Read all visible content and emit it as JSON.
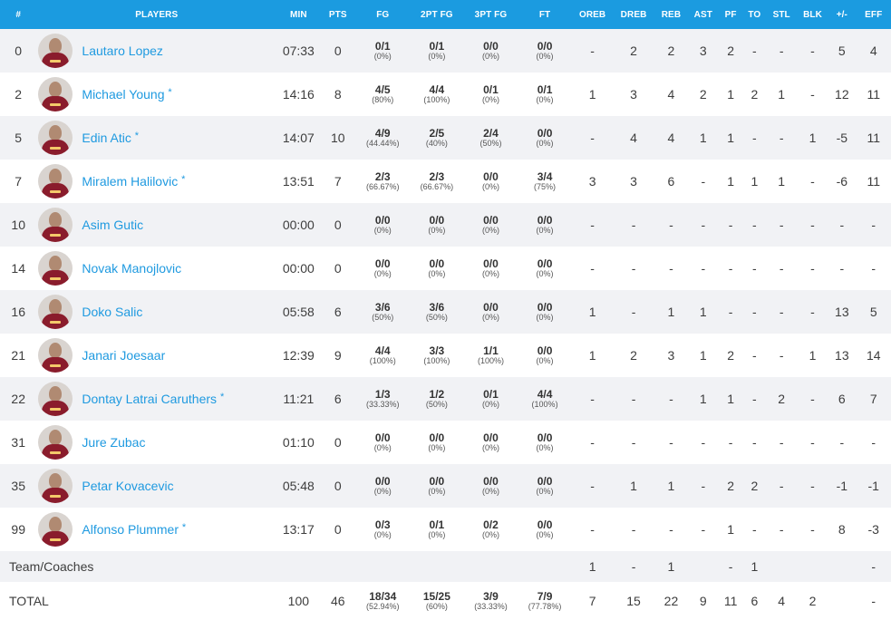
{
  "columns": [
    "#",
    "PLAYERS",
    "MIN",
    "PTS",
    "FG",
    "2PT FG",
    "3PT FG",
    "FT",
    "OREB",
    "DREB",
    "REB",
    "AST",
    "PF",
    "TO",
    "STL",
    "BLK",
    "+/-",
    "EFF"
  ],
  "players": [
    {
      "number": "0",
      "name": "Lautaro Lopez",
      "starter": "",
      "min": "07:33",
      "pts": "0",
      "fg": {
        "m": "0/1",
        "p": "(0%)"
      },
      "fg2": {
        "m": "0/1",
        "p": "(0%)"
      },
      "fg3": {
        "m": "0/0",
        "p": "(0%)"
      },
      "ft": {
        "m": "0/0",
        "p": "(0%)"
      },
      "oreb": "-",
      "dreb": "2",
      "reb": "2",
      "ast": "3",
      "pf": "2",
      "to": "-",
      "stl": "-",
      "blk": "-",
      "pm": "5",
      "eff": "4"
    },
    {
      "number": "2",
      "name": "Michael Young",
      "starter": "*",
      "min": "14:16",
      "pts": "8",
      "fg": {
        "m": "4/5",
        "p": "(80%)"
      },
      "fg2": {
        "m": "4/4",
        "p": "(100%)"
      },
      "fg3": {
        "m": "0/1",
        "p": "(0%)"
      },
      "ft": {
        "m": "0/1",
        "p": "(0%)"
      },
      "oreb": "1",
      "dreb": "3",
      "reb": "4",
      "ast": "2",
      "pf": "1",
      "to": "2",
      "stl": "1",
      "blk": "-",
      "pm": "12",
      "eff": "11"
    },
    {
      "number": "5",
      "name": "Edin Atic",
      "starter": "*",
      "min": "14:07",
      "pts": "10",
      "fg": {
        "m": "4/9",
        "p": "(44.44%)"
      },
      "fg2": {
        "m": "2/5",
        "p": "(40%)"
      },
      "fg3": {
        "m": "2/4",
        "p": "(50%)"
      },
      "ft": {
        "m": "0/0",
        "p": "(0%)"
      },
      "oreb": "-",
      "dreb": "4",
      "reb": "4",
      "ast": "1",
      "pf": "1",
      "to": "-",
      "stl": "-",
      "blk": "1",
      "pm": "-5",
      "eff": "11"
    },
    {
      "number": "7",
      "name": "Miralem Halilovic",
      "starter": "*",
      "min": "13:51",
      "pts": "7",
      "fg": {
        "m": "2/3",
        "p": "(66.67%)"
      },
      "fg2": {
        "m": "2/3",
        "p": "(66.67%)"
      },
      "fg3": {
        "m": "0/0",
        "p": "(0%)"
      },
      "ft": {
        "m": "3/4",
        "p": "(75%)"
      },
      "oreb": "3",
      "dreb": "3",
      "reb": "6",
      "ast": "-",
      "pf": "1",
      "to": "1",
      "stl": "1",
      "blk": "-",
      "pm": "-6",
      "eff": "11"
    },
    {
      "number": "10",
      "name": "Asim Gutic",
      "starter": "",
      "min": "00:00",
      "pts": "0",
      "fg": {
        "m": "0/0",
        "p": "(0%)"
      },
      "fg2": {
        "m": "0/0",
        "p": "(0%)"
      },
      "fg3": {
        "m": "0/0",
        "p": "(0%)"
      },
      "ft": {
        "m": "0/0",
        "p": "(0%)"
      },
      "oreb": "-",
      "dreb": "-",
      "reb": "-",
      "ast": "-",
      "pf": "-",
      "to": "-",
      "stl": "-",
      "blk": "-",
      "pm": "-",
      "eff": "-"
    },
    {
      "number": "14",
      "name": "Novak Manojlovic",
      "starter": "",
      "min": "00:00",
      "pts": "0",
      "fg": {
        "m": "0/0",
        "p": "(0%)"
      },
      "fg2": {
        "m": "0/0",
        "p": "(0%)"
      },
      "fg3": {
        "m": "0/0",
        "p": "(0%)"
      },
      "ft": {
        "m": "0/0",
        "p": "(0%)"
      },
      "oreb": "-",
      "dreb": "-",
      "reb": "-",
      "ast": "-",
      "pf": "-",
      "to": "-",
      "stl": "-",
      "blk": "-",
      "pm": "-",
      "eff": "-"
    },
    {
      "number": "16",
      "name": "Doko Salic",
      "starter": "",
      "min": "05:58",
      "pts": "6",
      "fg": {
        "m": "3/6",
        "p": "(50%)"
      },
      "fg2": {
        "m": "3/6",
        "p": "(50%)"
      },
      "fg3": {
        "m": "0/0",
        "p": "(0%)"
      },
      "ft": {
        "m": "0/0",
        "p": "(0%)"
      },
      "oreb": "1",
      "dreb": "-",
      "reb": "1",
      "ast": "1",
      "pf": "-",
      "to": "-",
      "stl": "-",
      "blk": "-",
      "pm": "13",
      "eff": "5"
    },
    {
      "number": "21",
      "name": "Janari Joesaar",
      "starter": "",
      "min": "12:39",
      "pts": "9",
      "fg": {
        "m": "4/4",
        "p": "(100%)"
      },
      "fg2": {
        "m": "3/3",
        "p": "(100%)"
      },
      "fg3": {
        "m": "1/1",
        "p": "(100%)"
      },
      "ft": {
        "m": "0/0",
        "p": "(0%)"
      },
      "oreb": "1",
      "dreb": "2",
      "reb": "3",
      "ast": "1",
      "pf": "2",
      "to": "-",
      "stl": "-",
      "blk": "1",
      "pm": "13",
      "eff": "14"
    },
    {
      "number": "22",
      "name": "Dontay Latrai Caruthers",
      "starter": "*",
      "min": "11:21",
      "pts": "6",
      "fg": {
        "m": "1/3",
        "p": "(33.33%)"
      },
      "fg2": {
        "m": "1/2",
        "p": "(50%)"
      },
      "fg3": {
        "m": "0/1",
        "p": "(0%)"
      },
      "ft": {
        "m": "4/4",
        "p": "(100%)"
      },
      "oreb": "-",
      "dreb": "-",
      "reb": "-",
      "ast": "1",
      "pf": "1",
      "to": "-",
      "stl": "2",
      "blk": "-",
      "pm": "6",
      "eff": "7"
    },
    {
      "number": "31",
      "name": "Jure Zubac",
      "starter": "",
      "min": "01:10",
      "pts": "0",
      "fg": {
        "m": "0/0",
        "p": "(0%)"
      },
      "fg2": {
        "m": "0/0",
        "p": "(0%)"
      },
      "fg3": {
        "m": "0/0",
        "p": "(0%)"
      },
      "ft": {
        "m": "0/0",
        "p": "(0%)"
      },
      "oreb": "-",
      "dreb": "-",
      "reb": "-",
      "ast": "-",
      "pf": "-",
      "to": "-",
      "stl": "-",
      "blk": "-",
      "pm": "-",
      "eff": "-"
    },
    {
      "number": "35",
      "name": "Petar Kovacevic",
      "starter": "",
      "min": "05:48",
      "pts": "0",
      "fg": {
        "m": "0/0",
        "p": "(0%)"
      },
      "fg2": {
        "m": "0/0",
        "p": "(0%)"
      },
      "fg3": {
        "m": "0/0",
        "p": "(0%)"
      },
      "ft": {
        "m": "0/0",
        "p": "(0%)"
      },
      "oreb": "-",
      "dreb": "1",
      "reb": "1",
      "ast": "-",
      "pf": "2",
      "to": "2",
      "stl": "-",
      "blk": "-",
      "pm": "-1",
      "eff": "-1"
    },
    {
      "number": "99",
      "name": "Alfonso Plummer",
      "starter": "*",
      "min": "13:17",
      "pts": "0",
      "fg": {
        "m": "0/3",
        "p": "(0%)"
      },
      "fg2": {
        "m": "0/1",
        "p": "(0%)"
      },
      "fg3": {
        "m": "0/2",
        "p": "(0%)"
      },
      "ft": {
        "m": "0/0",
        "p": "(0%)"
      },
      "oreb": "-",
      "dreb": "-",
      "reb": "-",
      "ast": "-",
      "pf": "1",
      "to": "-",
      "stl": "-",
      "blk": "-",
      "pm": "8",
      "eff": "-3"
    }
  ],
  "team_coaches": {
    "label": "Team/Coaches",
    "oreb": "1",
    "dreb": "-",
    "reb": "1",
    "ast": "",
    "pf": "-",
    "to": "1",
    "stl": "",
    "blk": "",
    "pm": "",
    "eff": "-"
  },
  "total": {
    "label": "TOTAL",
    "min": "100",
    "pts": "46",
    "fg": {
      "m": "18/34",
      "p": "(52.94%)"
    },
    "fg2": {
      "m": "15/25",
      "p": "(60%)"
    },
    "fg3": {
      "m": "3/9",
      "p": "(33.33%)"
    },
    "ft": {
      "m": "7/9",
      "p": "(77.78%)"
    },
    "oreb": "7",
    "dreb": "15",
    "reb": "22",
    "ast": "9",
    "pf": "11",
    "to": "6",
    "stl": "4",
    "blk": "2",
    "pm": "",
    "eff": "-"
  }
}
